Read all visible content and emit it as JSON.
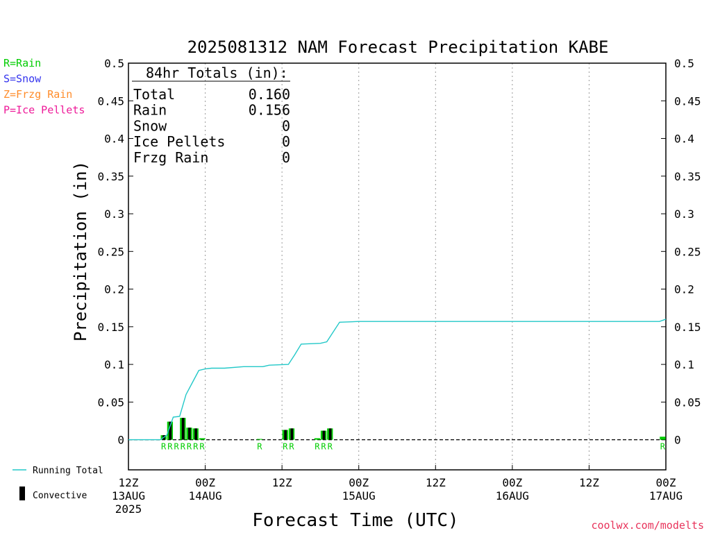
{
  "chart_data": {
    "type": "bar",
    "title": "2025081312 NAM Forecast Precipitation KABE",
    "xlabel": "Forecast Time (UTC)",
    "ylabel": "Precipitation (in)",
    "ylim": [
      -0.04,
      0.5
    ],
    "xlim_hours": [
      0,
      84
    ],
    "yticks": [
      0,
      0.05,
      0.1,
      0.15,
      0.2,
      0.25,
      0.3,
      0.35,
      0.4,
      0.45,
      0.5
    ],
    "ytick_labels": [
      "0",
      "0.05",
      "0.1",
      "0.15",
      "0.2",
      "0.25",
      "0.3",
      "0.35",
      "0.4",
      "0.45",
      "0.5"
    ],
    "xticks": [
      {
        "hour": 0,
        "lines": [
          "12Z",
          "13AUG",
          "2025"
        ]
      },
      {
        "hour": 12,
        "lines": [
          "00Z",
          "14AUG"
        ]
      },
      {
        "hour": 24,
        "lines": [
          "12Z"
        ]
      },
      {
        "hour": 36,
        "lines": [
          "00Z",
          "15AUG"
        ]
      },
      {
        "hour": 48,
        "lines": [
          "12Z"
        ]
      },
      {
        "hour": 60,
        "lines": [
          "00Z",
          "16AUG"
        ]
      },
      {
        "hour": 72,
        "lines": [
          "12Z"
        ]
      },
      {
        "hour": 84,
        "lines": [
          "00Z",
          "17AUG"
        ]
      }
    ],
    "grid_vertical_dotted": true,
    "precip_type_legend": [
      {
        "label": "R=Rain",
        "color": "#00cc00"
      },
      {
        "label": "S=Snow",
        "color": "#3333ee"
      },
      {
        "label": "Z=Frzg Rain",
        "color": "#ff8c2a"
      },
      {
        "label": "P=Ice Pellets",
        "color": "#ee1a99"
      }
    ],
    "totals": {
      "header": "84hr Totals (in):",
      "rows": [
        {
          "label": "Total",
          "value": "0.160"
        },
        {
          "label": "Rain",
          "value": "0.156"
        },
        {
          "label": "Snow",
          "value": "0"
        },
        {
          "label": "Ice Pellets",
          "value": "0"
        },
        {
          "label": "Frzg Rain",
          "value": "0"
        }
      ]
    },
    "bars": [
      {
        "hour": 6,
        "total": 0.006,
        "convective": 0.006,
        "type": "R"
      },
      {
        "hour": 7,
        "total": 0.024,
        "convective": 0.024,
        "type": "R"
      },
      {
        "hour": 9,
        "total": 0.029,
        "convective": 0.029,
        "type": "R"
      },
      {
        "hour": 10,
        "total": 0.016,
        "convective": 0.016,
        "type": "R"
      },
      {
        "hour": 11,
        "total": 0.015,
        "convective": 0.015,
        "type": "R"
      },
      {
        "hour": 12,
        "total": 0.002,
        "convective": 0.0,
        "type": "R"
      },
      {
        "hour": 21,
        "total": 0.001,
        "convective": 0.0,
        "type": "R"
      },
      {
        "hour": 25,
        "total": 0.013,
        "convective": 0.013,
        "type": "R"
      },
      {
        "hour": 26,
        "total": 0.015,
        "convective": 0.015,
        "type": "R"
      },
      {
        "hour": 30,
        "total": 0.002,
        "convective": 0.0,
        "type": ""
      },
      {
        "hour": 31,
        "total": 0.012,
        "convective": 0.012,
        "type": "R"
      },
      {
        "hour": 32,
        "total": 0.015,
        "convective": 0.015,
        "type": "R"
      },
      {
        "hour": 84,
        "total": 0.004,
        "convective": 0.0,
        "type": "R"
      }
    ],
    "type_labels": [
      {
        "hour": 6,
        "text": "R"
      },
      {
        "hour": 7,
        "text": "R"
      },
      {
        "hour": 8,
        "text": "R"
      },
      {
        "hour": 9,
        "text": "R"
      },
      {
        "hour": 10,
        "text": "R"
      },
      {
        "hour": 11,
        "text": "R"
      },
      {
        "hour": 12,
        "text": "R"
      },
      {
        "hour": 21,
        "text": "R"
      },
      {
        "hour": 25,
        "text": "R"
      },
      {
        "hour": 26,
        "text": "R"
      },
      {
        "hour": 30,
        "text": "R"
      },
      {
        "hour": 31,
        "text": "R"
      },
      {
        "hour": 32,
        "text": "R"
      },
      {
        "hour": 84,
        "text": "R"
      }
    ],
    "running_total": {
      "name": "Running Total",
      "color": "#22c8c8",
      "points": [
        [
          0,
          0
        ],
        [
          5,
          0
        ],
        [
          6,
          0.006
        ],
        [
          7,
          0.03
        ],
        [
          8,
          0.031
        ],
        [
          9,
          0.06
        ],
        [
          10,
          0.076
        ],
        [
          11,
          0.092
        ],
        [
          12,
          0.094
        ],
        [
          13,
          0.095
        ],
        [
          15,
          0.095
        ],
        [
          18,
          0.097
        ],
        [
          21,
          0.097
        ],
        [
          22,
          0.099
        ],
        [
          25,
          0.1
        ],
        [
          26,
          0.113
        ],
        [
          27,
          0.127
        ],
        [
          30,
          0.128
        ],
        [
          31,
          0.13
        ],
        [
          32,
          0.143
        ],
        [
          33,
          0.156
        ],
        [
          36,
          0.157
        ],
        [
          60,
          0.157
        ],
        [
          83,
          0.157
        ],
        [
          84,
          0.16
        ]
      ]
    },
    "bottom_legend": [
      {
        "label": "Running Total",
        "symbol": "line"
      },
      {
        "label": "Convective",
        "symbol": "bar"
      }
    ],
    "credit": "coolwx.com/modelts",
    "colors": {
      "rain": "#00cc00",
      "convective": "#000000",
      "running_total": "#22c8c8",
      "credit": "#e8325a",
      "grid": "#999999"
    }
  }
}
